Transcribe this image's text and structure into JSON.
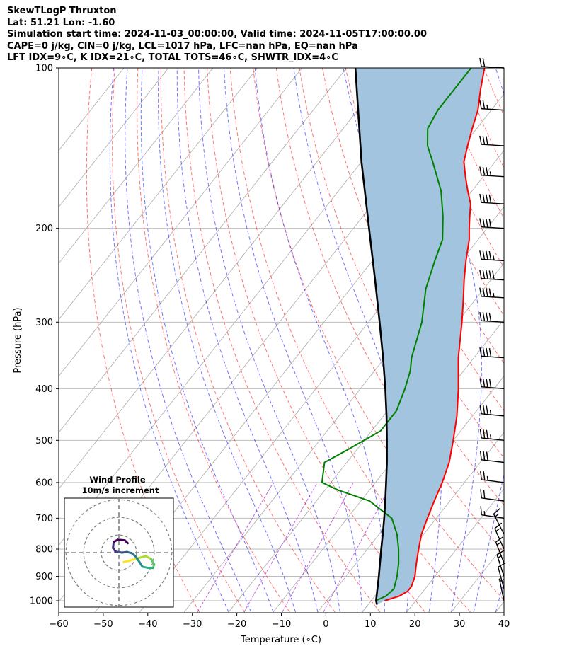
{
  "header": {
    "line1": "SkewTLogP Thruxton",
    "line2": "Lat: 51.21   Lon: -1.60",
    "line3": "Simulation start time: 2024-11-03_00:00:00, Valid time: 2024-11-05T17:00:00.00",
    "line4": "CAPE=0 j/kg, CIN=0 j/kg, LCL=1017 hPa, LFC=nan hPa, EQ=nan hPa",
    "line5": "LFT IDX=9∘C, K IDX=21∘C, TOTAL TOTS=46∘C, SHWTR_IDX=4∘C"
  },
  "chart_data": {
    "type": "line",
    "subtype": "skew-T log-P diagram",
    "xlabel": "Temperature (∘C)",
    "ylabel": "Pressure (hPa)",
    "xlim": [
      -60,
      40
    ],
    "ylim": [
      1050,
      100
    ],
    "y_scale": "log",
    "x_ticks": [
      "−60",
      "−50",
      "−40",
      "−30",
      "−20",
      "−10",
      "0",
      "10",
      "20",
      "30",
      "40"
    ],
    "y_ticks": [
      "100",
      "200",
      "300",
      "400",
      "500",
      "600",
      "700",
      "800",
      "900",
      "1000"
    ],
    "grid": true,
    "series": [
      {
        "name": "temperature",
        "color": "#ff0000",
        "points": [
          [
            1000,
            13
          ],
          [
            980,
            15.5
          ],
          [
            960,
            16.5
          ],
          [
            940,
            16.5
          ],
          [
            900,
            15.5
          ],
          [
            850,
            13.5
          ],
          [
            800,
            11.5
          ],
          [
            750,
            9.5
          ],
          [
            700,
            8
          ],
          [
            650,
            6.5
          ],
          [
            600,
            5
          ],
          [
            550,
            3
          ],
          [
            500,
            0
          ],
          [
            450,
            -3.5
          ],
          [
            400,
            -8
          ],
          [
            350,
            -13.5
          ],
          [
            300,
            -19
          ],
          [
            270,
            -23
          ],
          [
            250,
            -26
          ],
          [
            230,
            -29
          ],
          [
            210,
            -32
          ],
          [
            200,
            -34
          ],
          [
            190,
            -36
          ],
          [
            180,
            -38
          ],
          [
            170,
            -41
          ],
          [
            160,
            -44
          ],
          [
            150,
            -47
          ],
          [
            140,
            -49
          ],
          [
            130,
            -51
          ],
          [
            120,
            -53
          ],
          [
            110,
            -56
          ],
          [
            100,
            -59
          ]
        ]
      },
      {
        "name": "dewpoint",
        "color": "#008000",
        "points": [
          [
            1000,
            11
          ],
          [
            980,
            12.5
          ],
          [
            950,
            13
          ],
          [
            900,
            11.5
          ],
          [
            850,
            9.5
          ],
          [
            800,
            7
          ],
          [
            750,
            4
          ],
          [
            700,
            0
          ],
          [
            650,
            -8
          ],
          [
            620,
            -17
          ],
          [
            600,
            -22
          ],
          [
            550,
            -25
          ],
          [
            520,
            -22
          ],
          [
            480,
            -18
          ],
          [
            440,
            -18
          ],
          [
            400,
            -20
          ],
          [
            370,
            -22
          ],
          [
            350,
            -24
          ],
          [
            300,
            -28
          ],
          [
            260,
            -33
          ],
          [
            230,
            -36
          ],
          [
            210,
            -38
          ],
          [
            190,
            -42
          ],
          [
            170,
            -47
          ],
          [
            150,
            -54
          ],
          [
            140,
            -58
          ],
          [
            130,
            -61
          ],
          [
            120,
            -62
          ],
          [
            110,
            -62
          ],
          [
            100,
            -62
          ]
        ]
      },
      {
        "name": "parcel",
        "color": "#000000",
        "points": [
          [
            1017,
            12
          ],
          [
            1000,
            11.1
          ],
          [
            950,
            9.3
          ],
          [
            900,
            7.4
          ],
          [
            850,
            5.3
          ],
          [
            800,
            3.1
          ],
          [
            750,
            0.8
          ],
          [
            700,
            -1.7
          ],
          [
            650,
            -4.5
          ],
          [
            600,
            -7.6
          ],
          [
            550,
            -11
          ],
          [
            500,
            -14.9
          ],
          [
            450,
            -19.3
          ],
          [
            400,
            -24.4
          ],
          [
            350,
            -30.4
          ],
          [
            300,
            -37.5
          ],
          [
            250,
            -46
          ],
          [
            200,
            -56.5
          ],
          [
            150,
            -70
          ],
          [
            100,
            -88
          ]
        ]
      }
    ],
    "wind_barbs": {
      "pressures": [
        1000,
        950,
        900,
        850,
        800,
        750,
        700,
        650,
        600,
        550,
        500,
        450,
        400,
        350,
        300,
        270,
        250,
        230,
        200,
        180,
        160,
        140,
        120,
        100
      ],
      "speed_knots": [
        5,
        10,
        15,
        15,
        15,
        15,
        15,
        20,
        25,
        30,
        35,
        35,
        40,
        40,
        40,
        45,
        50,
        45,
        40,
        40,
        35,
        30,
        25,
        20
      ]
    },
    "inset": {
      "title": "Wind Profile",
      "subtitle": "10m/s increment",
      "hodograph_colormap": "viridis",
      "points": [
        [
          0.8,
          -1.6
        ],
        [
          1.8,
          -1.4
        ],
        [
          3,
          -1.0
        ],
        [
          4.6,
          -0.6
        ],
        [
          5.5,
          -1.1
        ],
        [
          6,
          -2.0
        ],
        [
          5.8,
          -2.6
        ],
        [
          5,
          -2.6
        ],
        [
          4,
          -2.4
        ],
        [
          3.5,
          -1.6
        ],
        [
          2.8,
          -0.6
        ],
        [
          2.2,
          -0.1
        ],
        [
          1.4,
          0.1
        ],
        [
          0.5,
          0.0
        ],
        [
          -0.6,
          0.2
        ],
        [
          -1.0,
          0.8
        ],
        [
          -0.9,
          1.8
        ],
        [
          -0.2,
          2.2
        ],
        [
          1.0,
          2.1
        ],
        [
          1.5,
          1.6
        ]
      ]
    }
  },
  "colors": {
    "cape_fill": "#a2c4de",
    "isotherm_grid": "#b3b3b3",
    "dry_adiabat": "#ff0000",
    "moist_adiabat": "#0000ff",
    "mixing_ratio": "#9900cc"
  },
  "icons": {
    "surface_calm": "calm-wind-circle-icon"
  }
}
